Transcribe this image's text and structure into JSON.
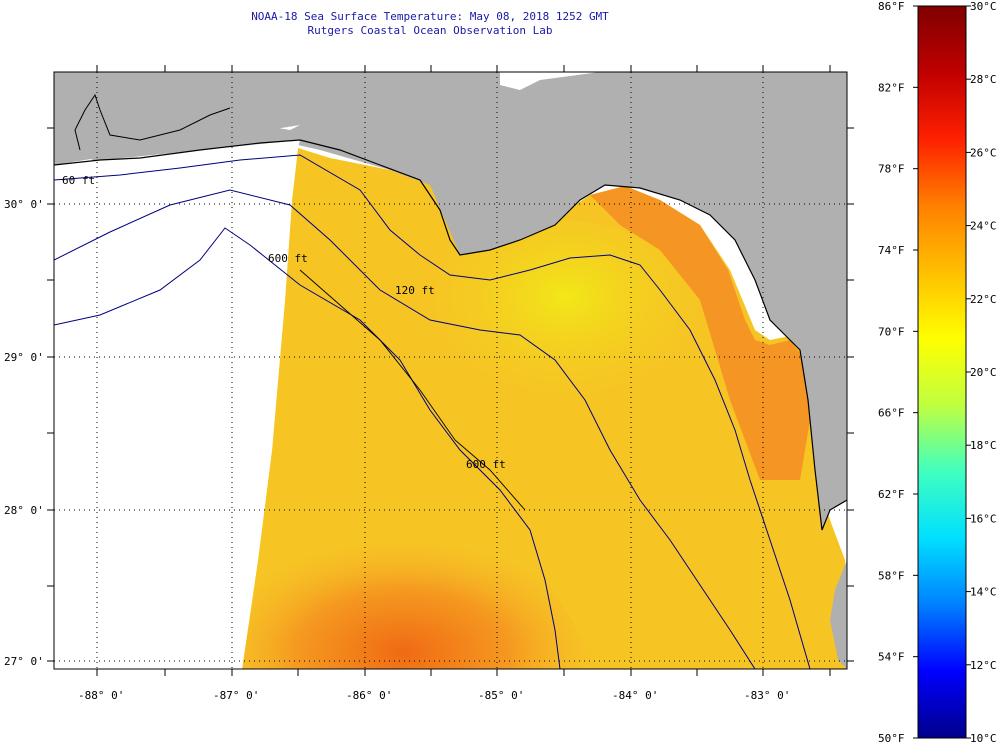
{
  "title": {
    "line1": "NOAA-18 Sea Surface Temperature:  May 08, 2018 1252 GMT",
    "line2": "Rutgers Coastal Ocean Observation Lab"
  },
  "map": {
    "lon_ticks": [
      "-88° 0'",
      "-87° 0'",
      "-86° 0'",
      "-85° 0'",
      "-84° 0'",
      "-83° 0'"
    ],
    "lat_ticks": [
      "30° 0'",
      "29° 0'",
      "28° 0'",
      "27° 0'"
    ],
    "isobaths": [
      "60 ft",
      "120 ft",
      "600 ft",
      "600 ft"
    ],
    "colors": {
      "land": "#b0b0b0",
      "no_data": "#ffffff",
      "grid": "#000000",
      "coast": "#000000",
      "isobath": "#000080"
    }
  },
  "colorbar": {
    "fahrenheit": [
      "86°F",
      "82°F",
      "78°F",
      "74°F",
      "70°F",
      "66°F",
      "62°F",
      "58°F",
      "54°F",
      "50°F"
    ],
    "celsius": [
      "30°C",
      "28°C",
      "26°C",
      "24°C",
      "22°C",
      "20°C",
      "18°C",
      "16°C",
      "14°C",
      "12°C",
      "10°C"
    ],
    "stops": [
      "#00008b",
      "#0000ff",
      "#0080ff",
      "#00e0ff",
      "#40ffbf",
      "#c0ff40",
      "#ffff00",
      "#ffc000",
      "#ff8000",
      "#ff2000",
      "#c00000",
      "#800000"
    ]
  }
}
